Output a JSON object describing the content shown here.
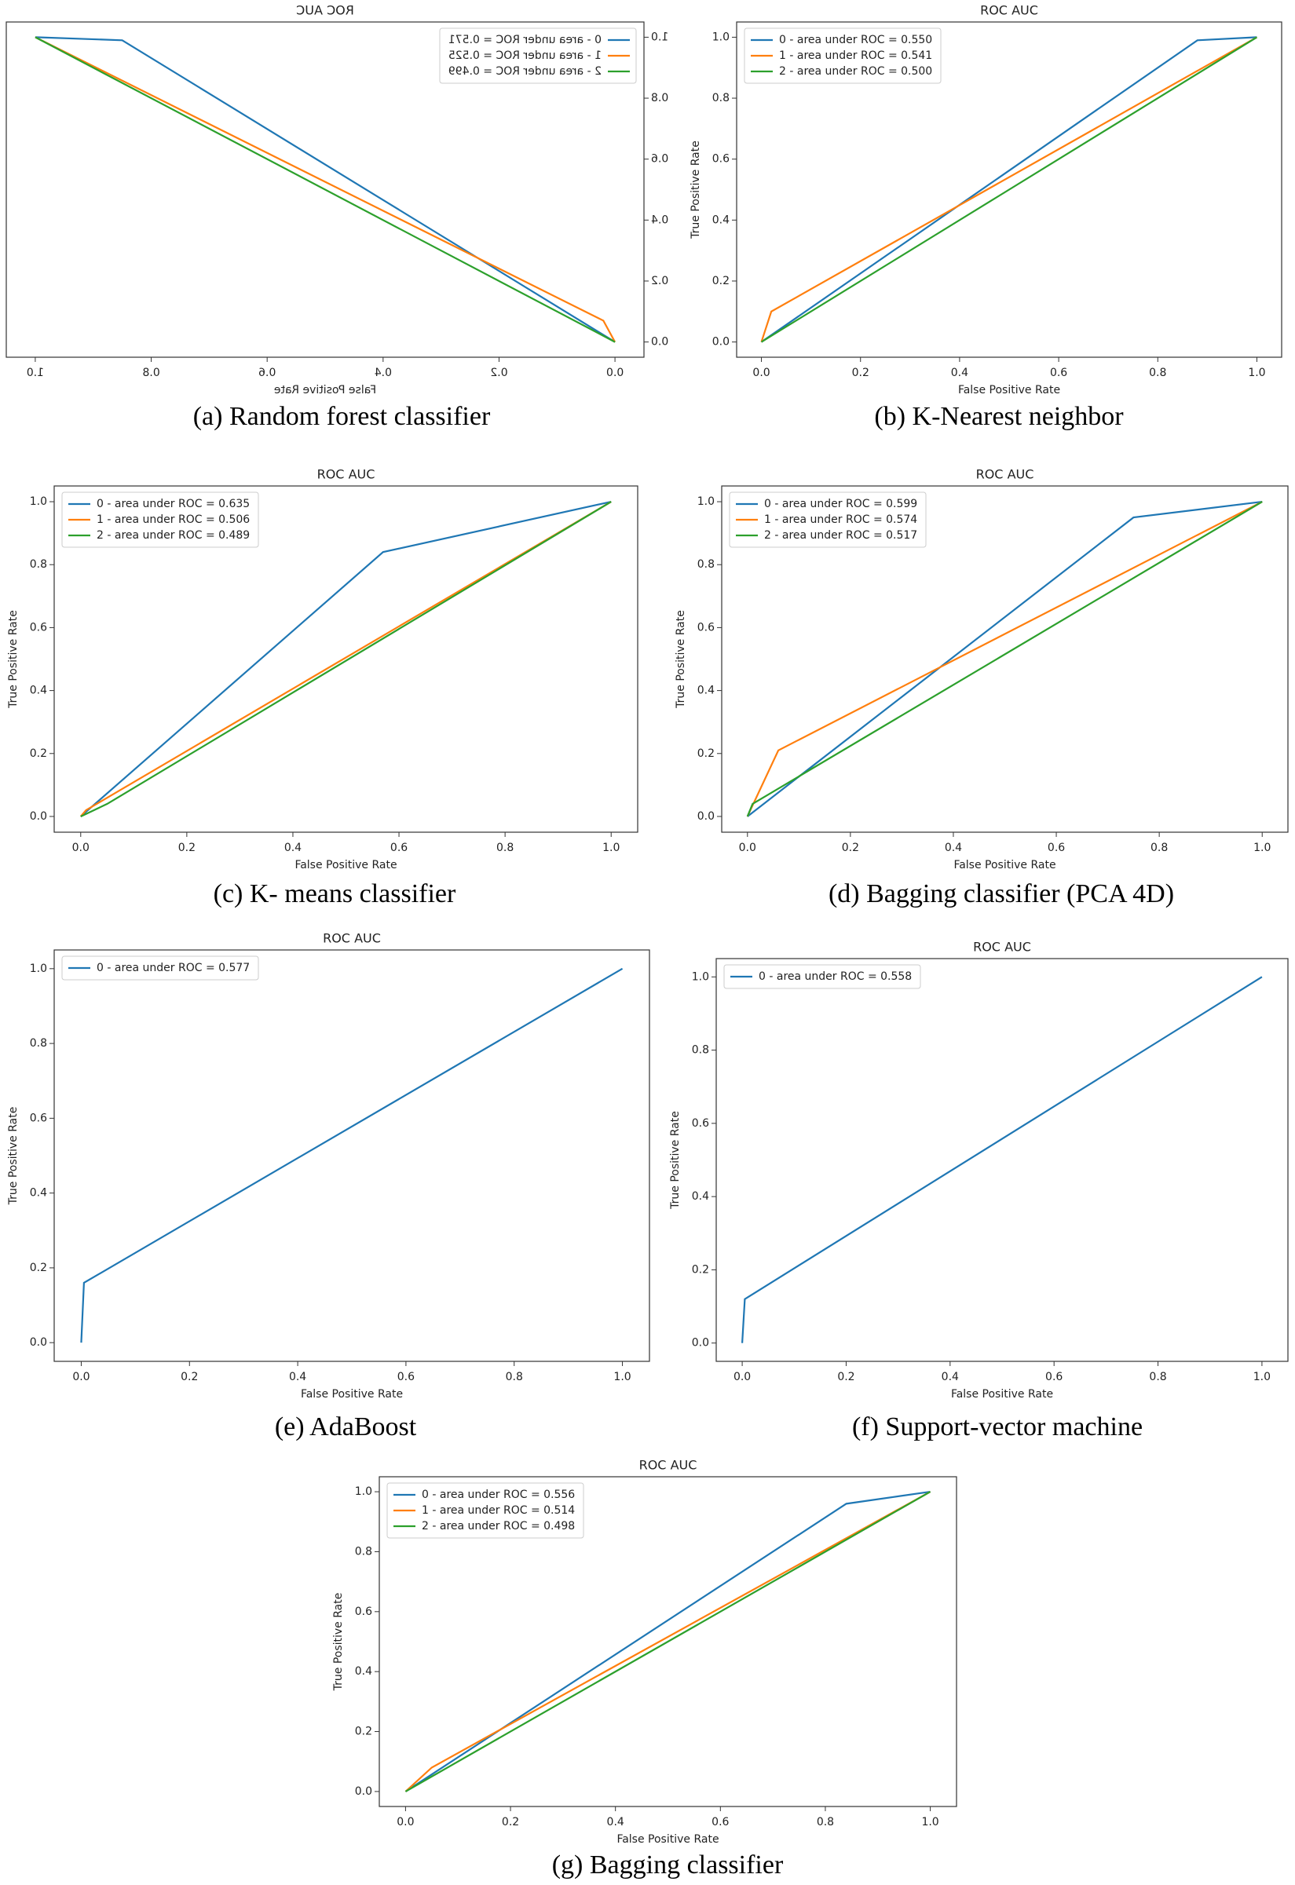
{
  "chart_data": [
    {
      "type": "line",
      "title": "ROC AUC",
      "xlabel": "False Positive Rate",
      "caption": "(a) Random forest classifier",
      "legend": "upper left",
      "xlim": [
        -0.05,
        1.05
      ],
      "ylim": [
        -0.05,
        1.05
      ],
      "xticks": [
        {
          "value": 0,
          "label": "0.0"
        },
        0.2,
        0.4,
        0.6,
        0.8,
        {
          "value": 1,
          "label": "1.0"
        }
      ],
      "yticks": [
        {
          "value": 0,
          "label": "0.0"
        },
        0.2,
        0.4,
        0.6,
        0.8,
        {
          "value": 1,
          "label": "1.0"
        }
      ],
      "series": [
        {
          "name": "0 - area under ROC = 0.571",
          "color": "#1f77b4",
          "x": [
            0,
            0.85,
            1
          ],
          "values": [
            0,
            0.99,
            1
          ]
        },
        {
          "name": "1 - area under ROC = 0.525",
          "color": "#ff7f0e",
          "x": [
            0,
            0.02,
            1
          ],
          "values": [
            0,
            0.07,
            1
          ]
        },
        {
          "name": "2 - area under ROC = 0.499",
          "color": "#2ca02c",
          "x": [
            0,
            1
          ],
          "values": [
            0,
            1
          ]
        }
      ]
    },
    {
      "type": "line",
      "title": "ROC AUC",
      "xlabel": "False Positive Rate",
      "ylabel": "True Positive Rate",
      "caption": "(b) K-Nearest neighbor",
      "legend": "upper left",
      "xlim": [
        -0.05,
        1.05
      ],
      "ylim": [
        -0.05,
        1.05
      ],
      "xticks": [
        {
          "value": 0,
          "label": "0.0"
        },
        0.2,
        0.4,
        0.6,
        0.8,
        {
          "value": 1,
          "label": "1.0"
        }
      ],
      "yticks": [
        {
          "value": 0,
          "label": "0.0"
        },
        0.2,
        0.4,
        0.6,
        0.8,
        {
          "value": 1,
          "label": "1.0"
        }
      ],
      "series": [
        {
          "name": "0 - area under ROC = 0.550",
          "color": "#1f77b4",
          "x": [
            0,
            0.88,
            1
          ],
          "values": [
            0,
            0.99,
            1
          ]
        },
        {
          "name": "1 - area under ROC = 0.541",
          "color": "#ff7f0e",
          "x": [
            0,
            0.02,
            1
          ],
          "values": [
            0,
            0.1,
            1
          ]
        },
        {
          "name": "2 - area under ROC = 0.500",
          "color": "#2ca02c",
          "x": [
            0,
            1
          ],
          "values": [
            0,
            1
          ]
        }
      ]
    },
    {
      "type": "line",
      "title": "ROC AUC",
      "xlabel": "False Positive Rate",
      "ylabel": "True Positive Rate",
      "caption": "(c) K- means classifier",
      "legend": "upper left",
      "xlim": [
        -0.05,
        1.05
      ],
      "ylim": [
        -0.05,
        1.05
      ],
      "xticks": [
        {
          "value": 0,
          "label": "0.0"
        },
        0.2,
        0.4,
        0.6,
        0.8,
        {
          "value": 1,
          "label": "1.0"
        }
      ],
      "yticks": [
        {
          "value": 0,
          "label": "0.0"
        },
        0.2,
        0.4,
        0.6,
        0.8,
        {
          "value": 1,
          "label": "1.0"
        }
      ],
      "series": [
        {
          "name": "0 - area under ROC = 0.635",
          "color": "#1f77b4",
          "x": [
            0,
            0.57,
            1
          ],
          "values": [
            0,
            0.84,
            1
          ]
        },
        {
          "name": "1 - area under ROC = 0.506",
          "color": "#ff7f0e",
          "x": [
            0,
            0.01,
            1
          ],
          "values": [
            0,
            0.02,
            1
          ]
        },
        {
          "name": "2 - area under ROC = 0.489",
          "color": "#2ca02c",
          "x": [
            0,
            0.05,
            1
          ],
          "values": [
            0,
            0.04,
            1
          ]
        }
      ]
    },
    {
      "type": "line",
      "title": "ROC AUC",
      "xlabel": "False Positive Rate",
      "ylabel": "True Positive Rate",
      "caption": "(d) Bagging classifier (PCA 4D)",
      "legend": "upper left",
      "xlim": [
        -0.05,
        1.05
      ],
      "ylim": [
        -0.05,
        1.05
      ],
      "xticks": [
        {
          "value": 0,
          "label": "0.0"
        },
        0.2,
        0.4,
        0.6,
        0.8,
        {
          "value": 1,
          "label": "1.0"
        }
      ],
      "yticks": [
        {
          "value": 0,
          "label": "0.0"
        },
        0.2,
        0.4,
        0.6,
        0.8,
        {
          "value": 1,
          "label": "1.0"
        }
      ],
      "series": [
        {
          "name": "0 - area under ROC = 0.599",
          "color": "#1f77b4",
          "x": [
            0,
            0.75,
            1
          ],
          "values": [
            0,
            0.95,
            1
          ]
        },
        {
          "name": "1 - area under ROC = 0.574",
          "color": "#ff7f0e",
          "x": [
            0,
            0.06,
            1
          ],
          "values": [
            0,
            0.21,
            1
          ]
        },
        {
          "name": "2 - area under ROC = 0.517",
          "color": "#2ca02c",
          "x": [
            0,
            0.01,
            1
          ],
          "values": [
            0,
            0.04,
            1
          ]
        }
      ]
    },
    {
      "type": "line",
      "title": "ROC AUC",
      "xlabel": "False Positive Rate",
      "ylabel": "True Positive Rate",
      "caption": "(e) AdaBoost",
      "legend": "upper left",
      "xlim": [
        -0.05,
        1.05
      ],
      "ylim": [
        -0.05,
        1.05
      ],
      "xticks": [
        {
          "value": 0,
          "label": "0.0"
        },
        0.2,
        0.4,
        0.6,
        0.8,
        {
          "value": 1,
          "label": "1.0"
        }
      ],
      "yticks": [
        {
          "value": 0,
          "label": "0.0"
        },
        0.2,
        0.4,
        0.6,
        0.8,
        {
          "value": 1,
          "label": "1.0"
        }
      ],
      "series": [
        {
          "name": "0 - area under ROC = 0.577",
          "color": "#1f77b4",
          "x": [
            0,
            0.005,
            1
          ],
          "values": [
            0,
            0.16,
            1
          ]
        }
      ]
    },
    {
      "type": "line",
      "title": "ROC AUC",
      "xlabel": "False Positive Rate",
      "ylabel": "True Positive Rate",
      "caption": "(f) Support-vector machine",
      "legend": "upper left",
      "xlim": [
        -0.05,
        1.05
      ],
      "ylim": [
        -0.05,
        1.05
      ],
      "xticks": [
        {
          "value": 0,
          "label": "0.0"
        },
        0.2,
        0.4,
        0.6,
        0.8,
        {
          "value": 1,
          "label": "1.0"
        }
      ],
      "yticks": [
        {
          "value": 0,
          "label": "0.0"
        },
        0.2,
        0.4,
        0.6,
        0.8,
        {
          "value": 1,
          "label": "1.0"
        }
      ],
      "series": [
        {
          "name": "0 - area under ROC = 0.558",
          "color": "#1f77b4",
          "x": [
            0,
            0.005,
            1
          ],
          "values": [
            0,
            0.12,
            1
          ]
        }
      ]
    },
    {
      "type": "line",
      "title": "ROC AUC",
      "xlabel": "False Positive Rate",
      "ylabel": "True Positive Rate",
      "caption": "(g) Bagging classifier",
      "legend": "upper left",
      "xlim": [
        -0.05,
        1.05
      ],
      "ylim": [
        -0.05,
        1.05
      ],
      "xticks": [
        {
          "value": 0,
          "label": "0.0"
        },
        0.2,
        0.4,
        0.6,
        0.8,
        {
          "value": 1,
          "label": "1.0"
        }
      ],
      "yticks": [
        {
          "value": 0,
          "label": "0.0"
        },
        0.2,
        0.4,
        0.6,
        0.8,
        {
          "value": 1,
          "label": "1.0"
        }
      ],
      "series": [
        {
          "name": "0 - area under ROC = 0.556",
          "color": "#1f77b4",
          "x": [
            0,
            0.84,
            1
          ],
          "values": [
            0,
            0.96,
            1
          ]
        },
        {
          "name": "1 - area under ROC = 0.514",
          "color": "#ff7f0e",
          "x": [
            0,
            0.05,
            1
          ],
          "values": [
            0,
            0.08,
            1
          ]
        },
        {
          "name": "2 - area under ROC = 0.498",
          "color": "#2ca02c",
          "x": [
            0,
            1
          ],
          "values": [
            0,
            1
          ]
        }
      ]
    }
  ]
}
